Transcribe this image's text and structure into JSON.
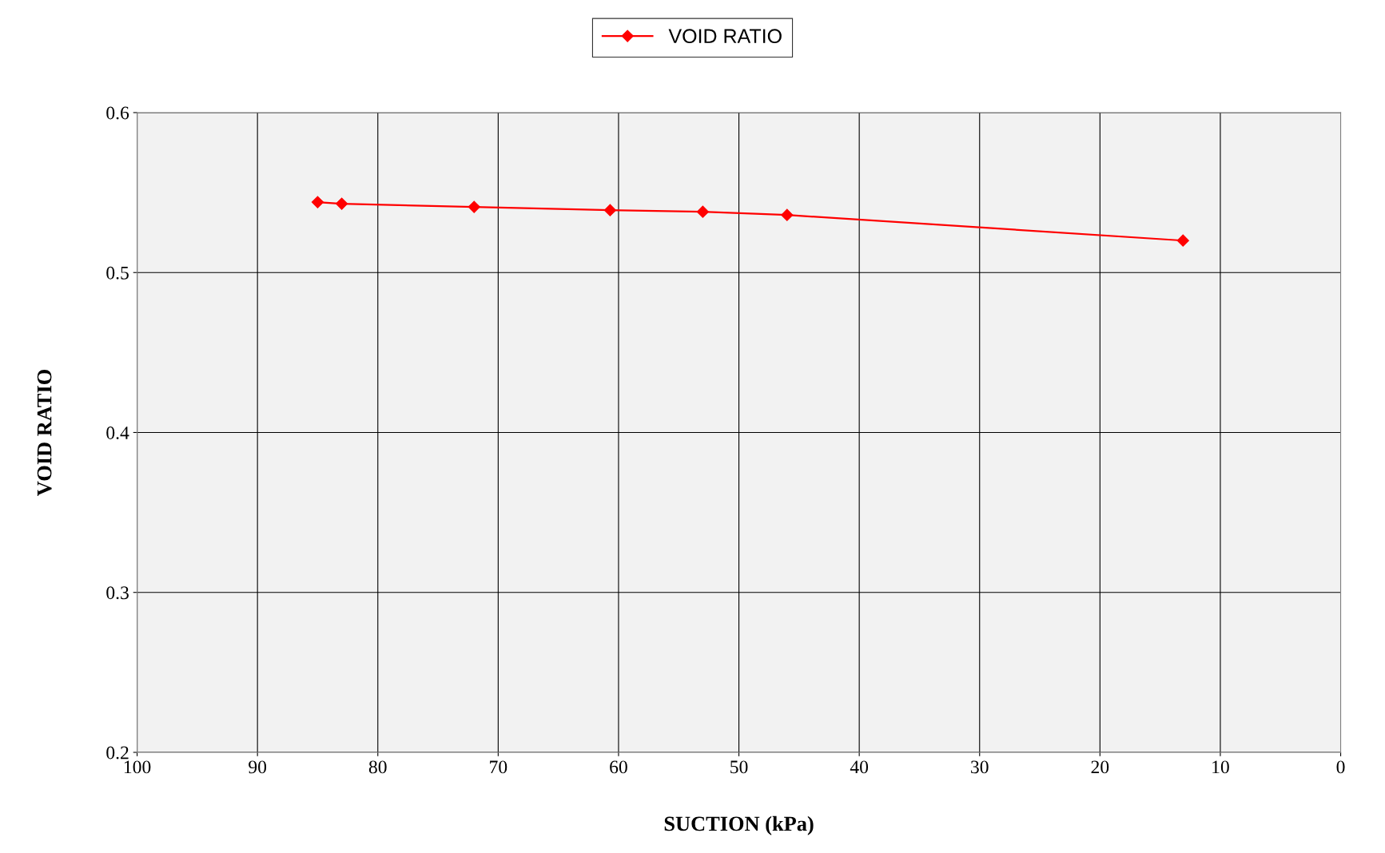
{
  "chart_data": {
    "type": "line",
    "xlabel": "SUCTION (kPa)",
    "ylabel": "VOID RATIO",
    "x": [
      85,
      83,
      72,
      60.7,
      53,
      46,
      13.1
    ],
    "series": [
      {
        "name": "VOID RATIO",
        "color": "#ff0000",
        "values": [
          0.544,
          0.543,
          0.541,
          0.539,
          0.538,
          0.536,
          0.52
        ]
      }
    ],
    "xlim": [
      100,
      0
    ],
    "xticks": [
      100,
      90,
      80,
      70,
      60,
      50,
      40,
      30,
      20,
      10,
      0
    ],
    "ylim": [
      0.2,
      0.6
    ],
    "yticks": [
      0.2,
      0.3,
      0.4,
      0.5,
      0.6
    ],
    "grid": true,
    "legend": "top",
    "marker": "diamond",
    "line_style": "solid"
  }
}
